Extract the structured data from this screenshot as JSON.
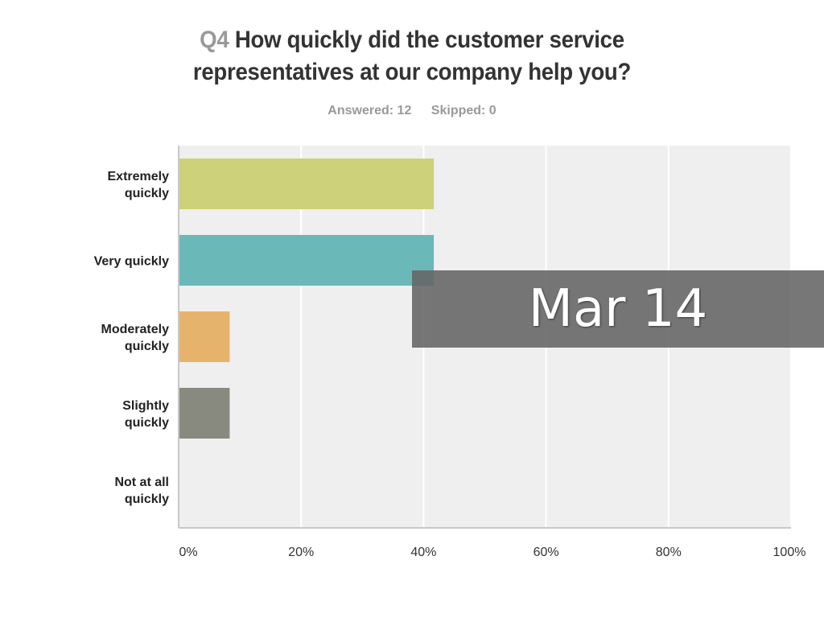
{
  "header": {
    "question_number": "Q4",
    "question_text": "How quickly did the customer service representatives at our company help you?",
    "line1_rest": "How quickly did the customer service",
    "line2": "representatives at our company help you?",
    "answered": "Answered: 12",
    "skipped": "Skipped: 0"
  },
  "overlay": {
    "label": "Mar 14"
  },
  "chart_data": {
    "type": "bar",
    "orientation": "horizontal",
    "title": "Q4 How quickly did the customer service representatives at our company help you?",
    "xlabel": "",
    "ylabel": "",
    "categories": [
      [
        "Extremely",
        "quickly"
      ],
      [
        "Very quickly"
      ],
      [
        "Moderately",
        "quickly"
      ],
      [
        "Slightly",
        "quickly"
      ],
      [
        "Not at all",
        "quickly"
      ]
    ],
    "values": [
      41.67,
      41.67,
      8.33,
      8.33,
      0
    ],
    "colors": [
      "#ccd17a",
      "#6bb8b9",
      "#e6b36d",
      "#888a80",
      "#cccccc"
    ],
    "xlim": [
      0,
      100
    ],
    "x_ticks": [
      "0%",
      "20%",
      "40%",
      "60%",
      "80%",
      "100%"
    ],
    "grid": true
  }
}
